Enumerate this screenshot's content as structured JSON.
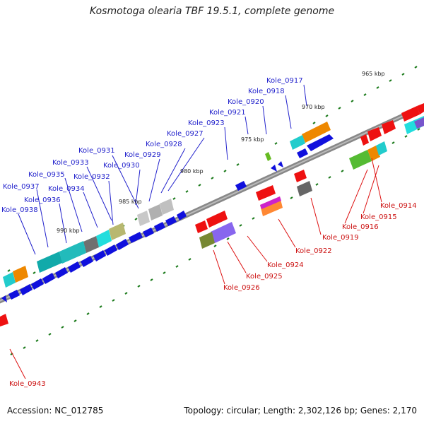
{
  "title": "Kosmotoga olearia TBF 19.5.1, complete genome",
  "accession": "Accession: NC_012785",
  "summary": "Topology: circular; Length: 2,302,126 bp; Genes: 2,170",
  "scale_labels": [
    "965 kbp",
    "970 kbp",
    "975 kbp",
    "980 kbp",
    "985 kbp",
    "990 kbp"
  ],
  "upper_strand_labels": [
    "Kole_0917",
    "Kole_0918",
    "Kole_0920",
    "Kole_0921",
    "Kole_0923",
    "Kole_0927",
    "Kole_0928",
    "Kole_0929",
    "Kole_0931",
    "Kole_0930",
    "Kole_0933",
    "Kole_0932",
    "Kole_0935",
    "Kole_0934",
    "Kole_0937",
    "Kole_0936",
    "Kole_0938"
  ],
  "lower_strand_labels": [
    "Kole_0914",
    "Kole_0915",
    "Kole_0916",
    "Kole_0919",
    "Kole_0922",
    "Kole_0924",
    "Kole_0925",
    "Kole_0926",
    "Kole_0943"
  ],
  "colors": {
    "upper_label": "#2222cc",
    "lower_label": "#cc1111",
    "backbone": "#777777",
    "tick": "#1a7a1a"
  }
}
